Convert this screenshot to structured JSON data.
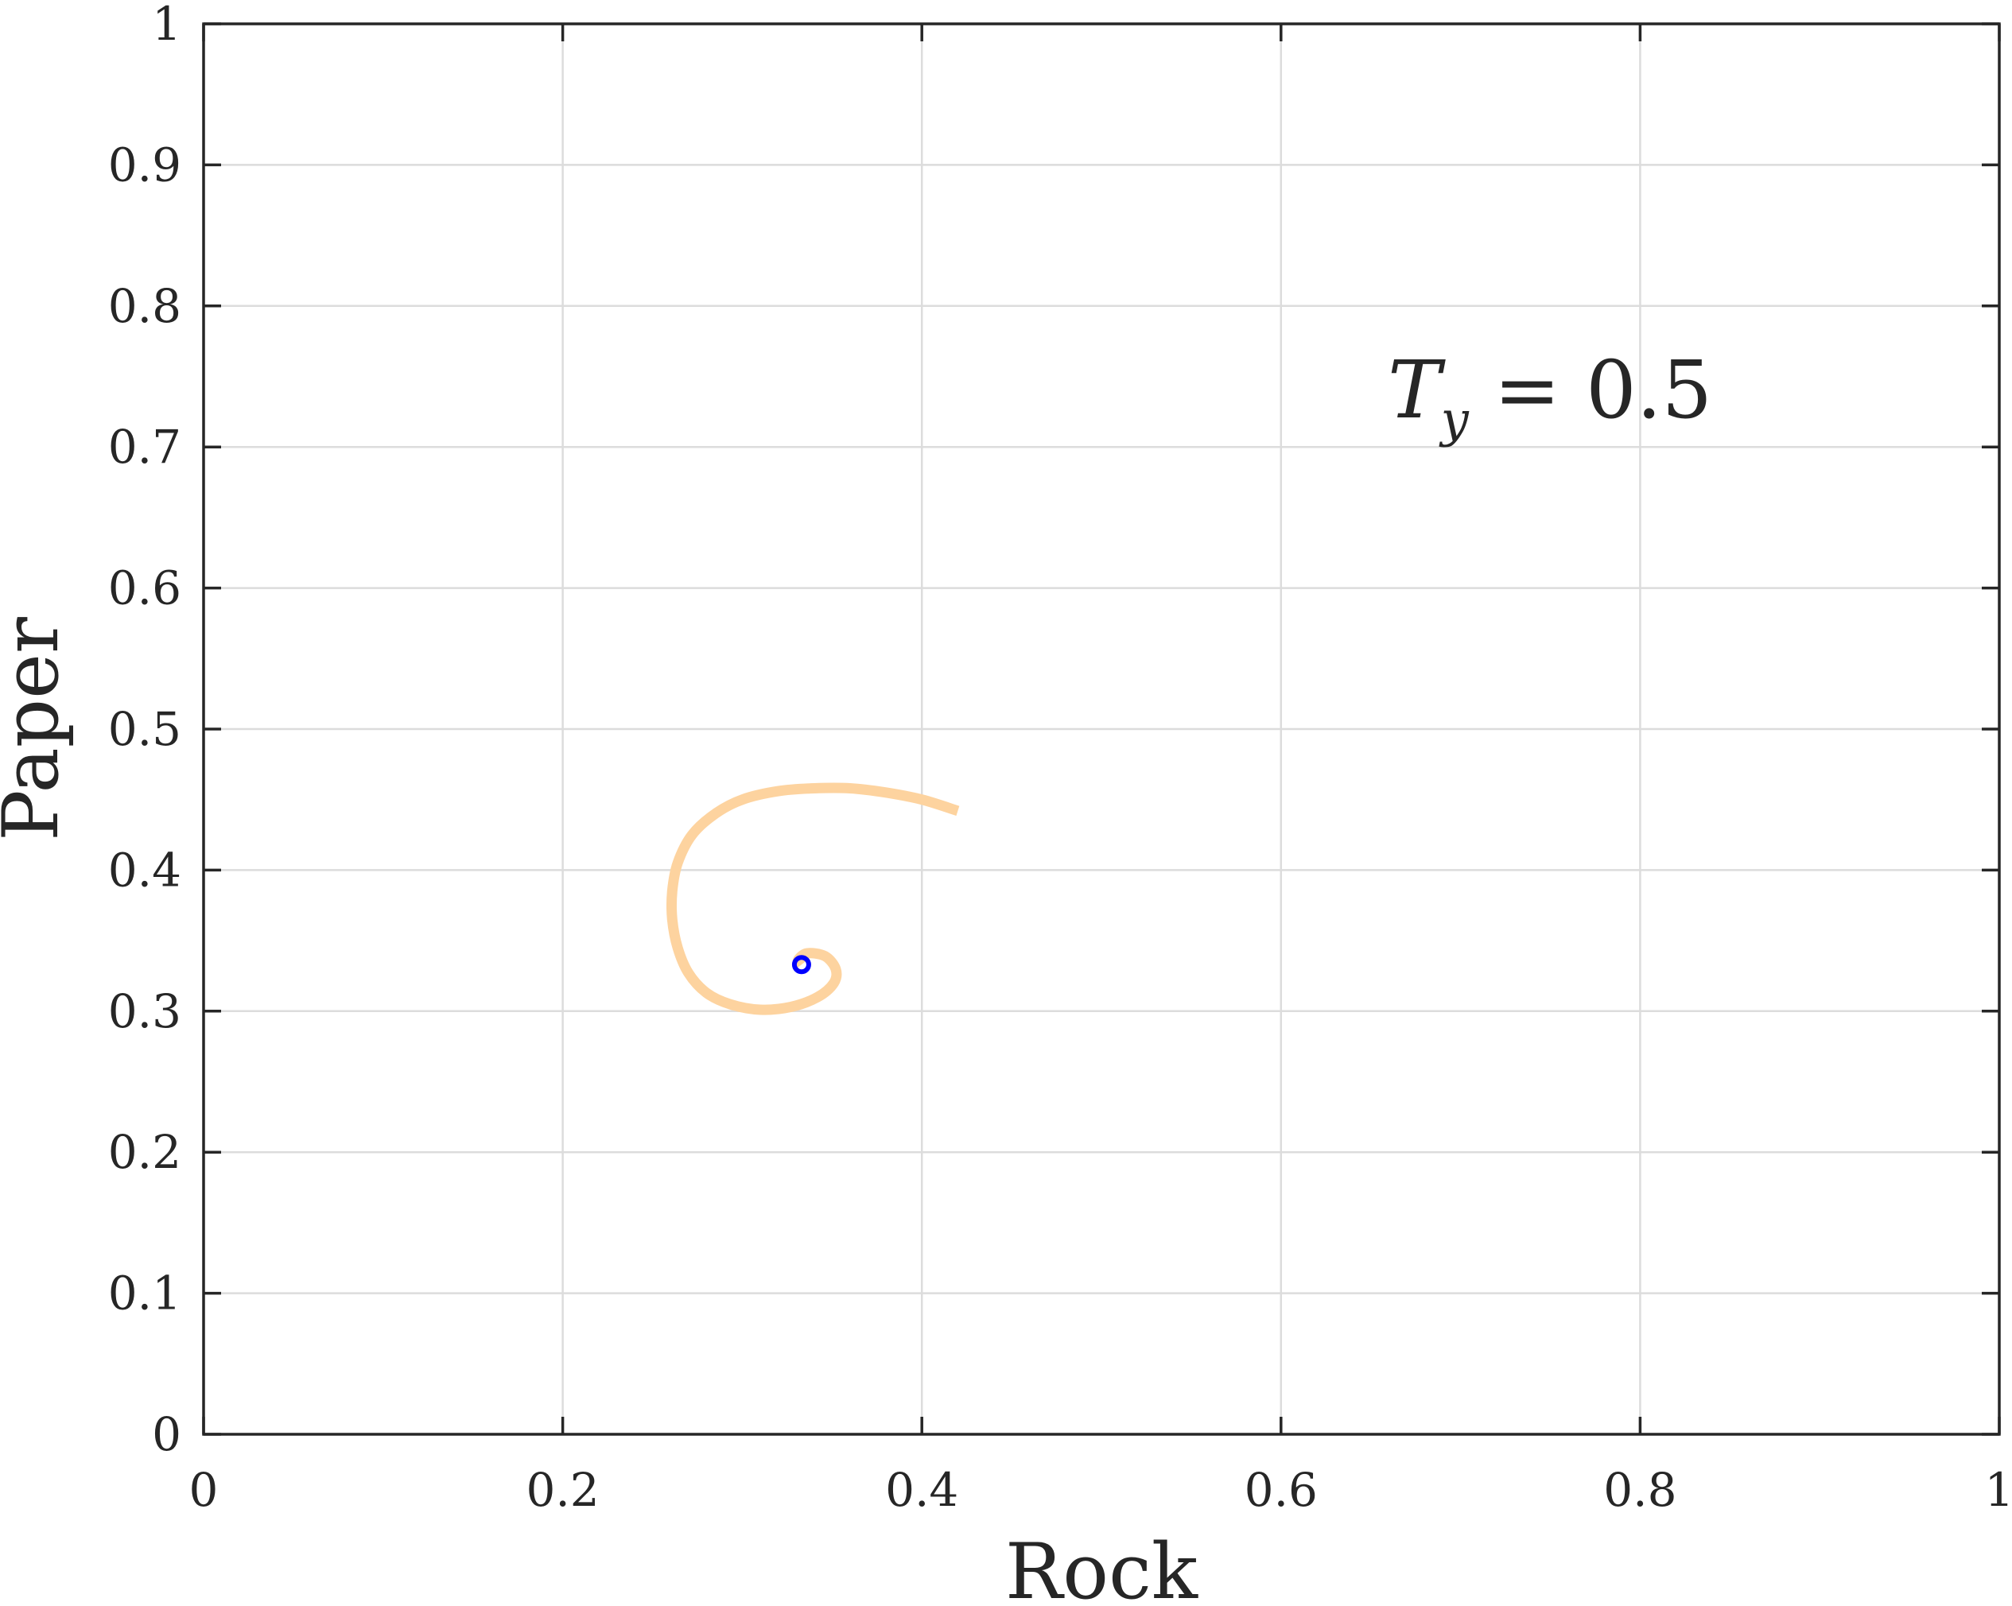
{
  "chart_data": {
    "type": "line",
    "xlabel": "Rock",
    "ylabel": "Paper",
    "annotation": {
      "base": "T",
      "subscript": "y",
      "rest": " = 0.5",
      "position": "top-right"
    },
    "xlim": [
      0,
      1
    ],
    "ylim": [
      0,
      1
    ],
    "x_ticks": [
      "0",
      "0.2",
      "0.4",
      "0.6",
      "0.8",
      "1"
    ],
    "y_ticks": [
      "0",
      "0.1",
      "0.2",
      "0.3",
      "0.4",
      "0.5",
      "0.6",
      "0.7",
      "0.8",
      "0.9",
      "1"
    ],
    "x_tick_values": [
      0,
      0.2,
      0.4,
      0.6,
      0.8,
      1
    ],
    "y_tick_values": [
      0,
      0.1,
      0.2,
      0.3,
      0.4,
      0.5,
      0.6,
      0.7,
      0.8,
      0.9,
      1
    ],
    "grid": true,
    "series": [
      {
        "color": "#fdd39f",
        "x": [
          0.42,
          0.4,
          0.38,
          0.36,
          0.34,
          0.32,
          0.3,
          0.285,
          0.272,
          0.264,
          0.261,
          0.261,
          0.264,
          0.27,
          0.28,
          0.293,
          0.31,
          0.327,
          0.342,
          0.351,
          0.352,
          0.346,
          0.336,
          0.331,
          0.333
        ],
        "y": [
          0.442,
          0.45,
          0.455,
          0.458,
          0.458,
          0.456,
          0.45,
          0.44,
          0.425,
          0.405,
          0.385,
          0.365,
          0.345,
          0.327,
          0.313,
          0.305,
          0.301,
          0.303,
          0.31,
          0.32,
          0.33,
          0.339,
          0.341,
          0.336,
          0.333
        ]
      }
    ],
    "marker": {
      "x": 0.333,
      "y": 0.333,
      "color": "#0000ff"
    }
  }
}
